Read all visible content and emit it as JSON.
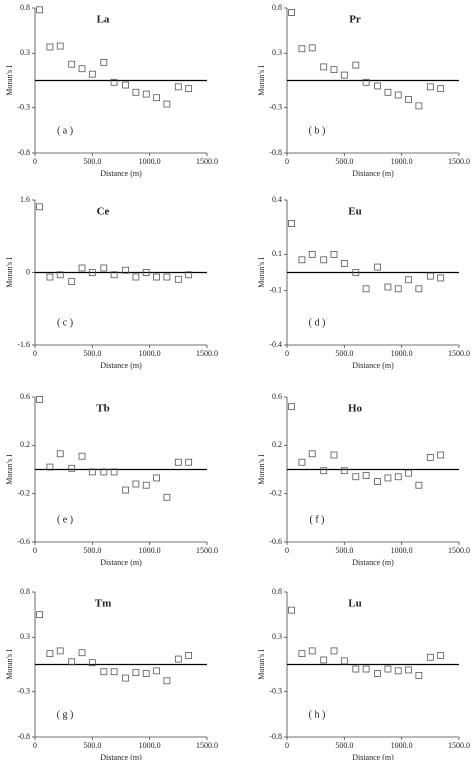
{
  "chart_data": [
    {
      "type": "scatter",
      "title": "La",
      "panel_label": "( a )",
      "xlabel": "Distance (m)",
      "ylabel": "Moran's I",
      "color": "#555555",
      "x": [
        40,
        130,
        220,
        320,
        410,
        500,
        600,
        690,
        790,
        880,
        970,
        1060,
        1150,
        1250,
        1340
      ],
      "values": [
        0.78,
        0.37,
        0.38,
        0.18,
        0.13,
        0.07,
        0.2,
        -0.02,
        -0.05,
        -0.13,
        -0.15,
        -0.19,
        -0.26,
        -0.07,
        -0.09
      ],
      "xlim": [
        0,
        1500
      ],
      "xticks": [
        0,
        {
          "value": 500,
          "label": "500.0"
        },
        {
          "value": 1000,
          "label": "1000.0"
        },
        {
          "value": 1500,
          "label": "1500.0"
        }
      ],
      "ylim": [
        -0.8,
        0.8
      ],
      "yticks": [
        -0.8,
        -0.3,
        0.3,
        0.8
      ]
    },
    {
      "type": "scatter",
      "title": "Pr",
      "panel_label": "( b )",
      "xlabel": "Distance (m)",
      "ylabel": "Moran's I",
      "color": "#555555",
      "x": [
        40,
        130,
        220,
        320,
        410,
        500,
        600,
        690,
        790,
        880,
        970,
        1060,
        1150,
        1250,
        1340
      ],
      "values": [
        0.75,
        0.35,
        0.36,
        0.15,
        0.12,
        0.06,
        0.17,
        -0.02,
        -0.06,
        -0.13,
        -0.16,
        -0.21,
        -0.28,
        -0.07,
        -0.09
      ],
      "xlim": [
        0,
        1500
      ],
      "xticks": [
        0,
        {
          "value": 500,
          "label": "500.0"
        },
        {
          "value": 1000,
          "label": "1000.0"
        },
        {
          "value": 1500,
          "label": "1500.0"
        }
      ],
      "ylim": [
        -0.8,
        0.8
      ],
      "yticks": [
        -0.8,
        -0.3,
        0.3,
        0.8
      ]
    },
    {
      "type": "scatter",
      "title": "Ce",
      "panel_label": "( c )",
      "xlabel": "Distance (m)",
      "ylabel": "Moran's I",
      "color": "#555555",
      "x": [
        40,
        130,
        220,
        320,
        410,
        500,
        600,
        690,
        790,
        880,
        970,
        1060,
        1150,
        1250,
        1340
      ],
      "values": [
        1.45,
        -0.1,
        -0.05,
        -0.2,
        0.1,
        0.0,
        0.1,
        -0.05,
        0.05,
        -0.1,
        0.0,
        -0.1,
        -0.1,
        -0.15,
        -0.05
      ],
      "xlim": [
        0,
        1500
      ],
      "xticks": [
        0,
        {
          "value": 500,
          "label": "500.0"
        },
        {
          "value": 1000,
          "label": "1000.0"
        },
        {
          "value": 1500,
          "label": "1500.0"
        }
      ],
      "ylim": [
        -1.6,
        1.6
      ],
      "yticks": [
        -1.6,
        0,
        1.6
      ]
    },
    {
      "type": "scatter",
      "title": "Eu",
      "panel_label": "( d )",
      "xlabel": "Distance (m)",
      "ylabel": "Moran's I",
      "color": "#555555",
      "x": [
        40,
        130,
        220,
        320,
        410,
        500,
        600,
        690,
        790,
        880,
        970,
        1060,
        1150,
        1250,
        1340
      ],
      "values": [
        0.27,
        0.07,
        0.1,
        0.07,
        0.1,
        0.05,
        0.0,
        -0.09,
        0.03,
        -0.08,
        -0.09,
        -0.04,
        -0.09,
        -0.02,
        -0.03
      ],
      "xlim": [
        0,
        1500
      ],
      "xticks": [
        0,
        {
          "value": 500,
          "label": "500.0"
        },
        {
          "value": 1000,
          "label": "1000.0"
        },
        {
          "value": 1500,
          "label": "1500.0"
        }
      ],
      "ylim": [
        -0.4,
        0.4
      ],
      "yticks": [
        -0.4,
        -0.1,
        0.1,
        0.4
      ]
    },
    {
      "type": "scatter",
      "title": "Tb",
      "panel_label": "( e )",
      "xlabel": "Distance (m)",
      "ylabel": "Moran's I",
      "color": "#555555",
      "x": [
        40,
        130,
        220,
        320,
        410,
        500,
        600,
        690,
        790,
        880,
        970,
        1060,
        1150,
        1250,
        1340
      ],
      "values": [
        0.58,
        0.02,
        0.13,
        0.01,
        0.11,
        -0.02,
        -0.02,
        -0.02,
        -0.17,
        -0.12,
        -0.13,
        -0.07,
        -0.23,
        0.06,
        0.06
      ],
      "xlim": [
        0,
        1500
      ],
      "xticks": [
        0,
        {
          "value": 500,
          "label": "500.0"
        },
        {
          "value": 1000,
          "label": "1000.0"
        },
        {
          "value": 1500,
          "label": "1500.0"
        }
      ],
      "ylim": [
        -0.6,
        0.6
      ],
      "yticks": [
        -0.6,
        -0.2,
        0.2,
        0.6
      ]
    },
    {
      "type": "scatter",
      "title": "Ho",
      "panel_label": "( f )",
      "xlabel": "Distance (m)",
      "ylabel": "Moran's I",
      "color": "#555555",
      "x": [
        40,
        130,
        220,
        320,
        410,
        500,
        600,
        690,
        790,
        880,
        970,
        1060,
        1150,
        1250,
        1340
      ],
      "values": [
        0.52,
        0.06,
        0.13,
        -0.01,
        0.12,
        -0.01,
        -0.06,
        -0.05,
        -0.1,
        -0.07,
        -0.06,
        -0.03,
        -0.13,
        0.1,
        0.12
      ],
      "xlim": [
        0,
        1500
      ],
      "xticks": [
        0,
        {
          "value": 500,
          "label": "500.0"
        },
        {
          "value": 1000,
          "label": "1000.0"
        },
        {
          "value": 1500,
          "label": "1500.0"
        }
      ],
      "ylim": [
        -0.6,
        0.6
      ],
      "yticks": [
        -0.6,
        -0.2,
        0.2,
        0.6
      ]
    },
    {
      "type": "scatter",
      "title": "Tm",
      "panel_label": "( g )",
      "xlabel": "Distance (m)",
      "ylabel": "Moran's I",
      "color": "#555555",
      "x": [
        40,
        130,
        220,
        320,
        410,
        500,
        600,
        690,
        790,
        880,
        970,
        1060,
        1150,
        1250,
        1340
      ],
      "values": [
        0.55,
        0.12,
        0.15,
        0.03,
        0.13,
        0.02,
        -0.08,
        -0.08,
        -0.15,
        -0.09,
        -0.1,
        -0.07,
        -0.18,
        0.06,
        0.1
      ],
      "xlim": [
        0,
        1500
      ],
      "xticks": [
        0,
        {
          "value": 500,
          "label": "500.0"
        },
        {
          "value": 1000,
          "label": "1000.0"
        },
        {
          "value": 1500,
          "label": "1500.0"
        }
      ],
      "ylim": [
        -0.8,
        0.8
      ],
      "yticks": [
        -0.8,
        -0.3,
        0.3,
        0.8
      ]
    },
    {
      "type": "scatter",
      "title": "Lu",
      "panel_label": "( h )",
      "xlabel": "Distance (m)",
      "ylabel": "Moran's I",
      "color": "#555555",
      "x": [
        40,
        130,
        220,
        320,
        410,
        500,
        600,
        690,
        790,
        880,
        970,
        1060,
        1150,
        1250,
        1340
      ],
      "values": [
        0.6,
        0.12,
        0.15,
        0.05,
        0.15,
        0.04,
        -0.05,
        -0.05,
        -0.1,
        -0.05,
        -0.07,
        -0.06,
        -0.12,
        0.08,
        0.1
      ],
      "xlim": [
        0,
        1500
      ],
      "xticks": [
        0,
        {
          "value": 500,
          "label": "500.0"
        },
        {
          "value": 1000,
          "label": "1000.0"
        },
        {
          "value": 1500,
          "label": "1500.0"
        }
      ],
      "ylim": [
        -0.8,
        0.8
      ],
      "yticks": [
        -0.8,
        -0.3,
        0.3,
        0.8
      ]
    }
  ]
}
